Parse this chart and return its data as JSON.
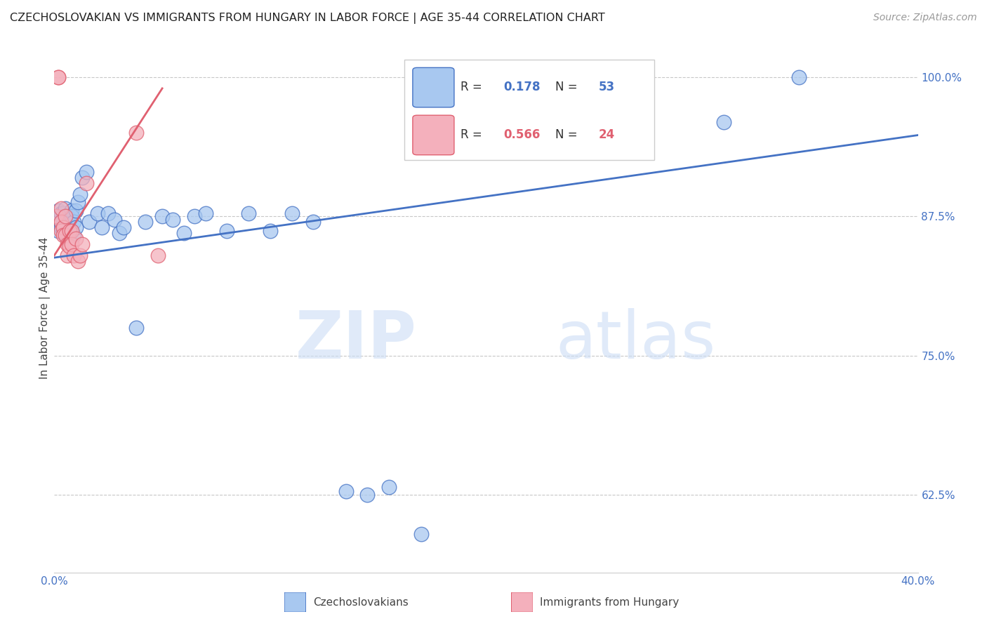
{
  "title": "CZECHOSLOVAKIAN VS IMMIGRANTS FROM HUNGARY IN LABOR FORCE | AGE 35-44 CORRELATION CHART",
  "source": "Source: ZipAtlas.com",
  "ylabel": "In Labor Force | Age 35-44",
  "xlim": [
    0.0,
    0.4
  ],
  "ylim": [
    0.555,
    1.03
  ],
  "xticks": [
    0.0,
    0.05,
    0.1,
    0.15,
    0.2,
    0.25,
    0.3,
    0.35,
    0.4
  ],
  "yticks_right": [
    0.625,
    0.75,
    0.875,
    1.0
  ],
  "ytick_right_labels": [
    "62.5%",
    "75.0%",
    "87.5%",
    "100.0%"
  ],
  "blue_color": "#a8c8f0",
  "pink_color": "#f4b0bc",
  "blue_line_color": "#4472c4",
  "pink_line_color": "#e06070",
  "R_blue": 0.178,
  "N_blue": 53,
  "R_pink": 0.566,
  "N_pink": 24,
  "legend_label_blue": "Czechoslovakians",
  "legend_label_pink": "Immigrants from Hungary",
  "watermark_zip": "ZIP",
  "watermark_atlas": "atlas",
  "blue_x": [
    0.001,
    0.002,
    0.002,
    0.003,
    0.003,
    0.003,
    0.004,
    0.004,
    0.004,
    0.005,
    0.005,
    0.005,
    0.006,
    0.006,
    0.006,
    0.007,
    0.007,
    0.008,
    0.008,
    0.008,
    0.009,
    0.009,
    0.01,
    0.01,
    0.011,
    0.012,
    0.013,
    0.015,
    0.016,
    0.02,
    0.022,
    0.025,
    0.028,
    0.03,
    0.032,
    0.038,
    0.042,
    0.05,
    0.055,
    0.06,
    0.065,
    0.07,
    0.08,
    0.09,
    0.1,
    0.11,
    0.12,
    0.135,
    0.145,
    0.155,
    0.17,
    0.31,
    0.345
  ],
  "blue_y": [
    0.872,
    0.88,
    0.862,
    0.878,
    0.865,
    0.87,
    0.878,
    0.862,
    0.87,
    0.882,
    0.87,
    0.858,
    0.875,
    0.862,
    0.858,
    0.872,
    0.858,
    0.88,
    0.862,
    0.875,
    0.87,
    0.858,
    0.88,
    0.865,
    0.888,
    0.895,
    0.91,
    0.915,
    0.87,
    0.878,
    0.865,
    0.878,
    0.872,
    0.86,
    0.865,
    0.775,
    0.87,
    0.875,
    0.872,
    0.86,
    0.875,
    0.878,
    0.862,
    0.878,
    0.862,
    0.878,
    0.87,
    0.628,
    0.625,
    0.632,
    0.59,
    0.96,
    1.0
  ],
  "pink_x": [
    0.001,
    0.002,
    0.002,
    0.003,
    0.003,
    0.003,
    0.004,
    0.004,
    0.005,
    0.005,
    0.006,
    0.006,
    0.007,
    0.007,
    0.008,
    0.008,
    0.009,
    0.01,
    0.011,
    0.012,
    0.013,
    0.015,
    0.038,
    0.048
  ],
  "pink_y": [
    0.875,
    1.0,
    1.0,
    0.882,
    0.87,
    0.862,
    0.865,
    0.858,
    0.875,
    0.858,
    0.85,
    0.84,
    0.862,
    0.848,
    0.862,
    0.85,
    0.84,
    0.855,
    0.835,
    0.84,
    0.85,
    0.905,
    0.95,
    0.84
  ],
  "blue_trendline_x": [
    0.0,
    0.4
  ],
  "blue_trendline_y": [
    0.838,
    0.948
  ],
  "pink_trendline_x": [
    0.0,
    0.05
  ],
  "pink_trendline_y": [
    0.84,
    0.99
  ]
}
